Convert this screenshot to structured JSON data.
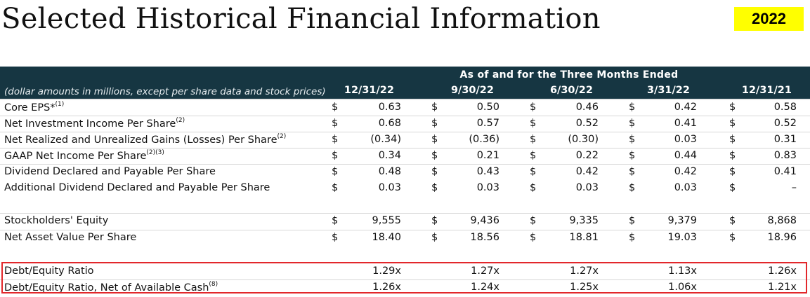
{
  "title": "Selected Historical Financial Information",
  "year_badge": "2022",
  "header": {
    "period": "As of and for the Three Months Ended",
    "note": "(dollar amounts in millions, except per share data and stock prices)",
    "columns": [
      "12/31/22",
      "9/30/22",
      "6/30/22",
      "3/31/22",
      "12/31/21"
    ]
  },
  "rows": [
    {
      "label": "Core EPS*",
      "sup": "(1)",
      "cur": "$",
      "values": [
        "0.63",
        "0.50",
        "0.46",
        "0.42",
        "0.58"
      ]
    },
    {
      "label": "Net Investment Income Per Share",
      "sup": "(2)",
      "cur": "$",
      "values": [
        "0.68",
        "0.57",
        "0.52",
        "0.41",
        "0.52"
      ]
    },
    {
      "label": "Net Realized and Unrealized Gains (Losses) Per Share",
      "sup": "(2)",
      "cur": "$",
      "values": [
        "(0.34)",
        "(0.36)",
        "(0.30)",
        "0.03",
        "0.31"
      ]
    },
    {
      "label": "GAAP Net Income Per Share",
      "sup": "(2)(3)",
      "cur": "$",
      "values": [
        "0.34",
        "0.21",
        "0.22",
        "0.44",
        "0.83"
      ]
    },
    {
      "label": "Dividend Declared and Payable Per Share",
      "sup": "",
      "cur": "$",
      "values": [
        "0.48",
        "0.43",
        "0.42",
        "0.42",
        "0.41"
      ]
    },
    {
      "label": "Additional Dividend Declared and Payable Per Share",
      "sup": "",
      "cur": "$",
      "values": [
        "0.03",
        "0.03",
        "0.03",
        "0.03",
        "–"
      ]
    },
    {
      "label": "Stockholders' Equity",
      "sup": "",
      "cur": "$",
      "values": [
        "9,555",
        "9,436",
        "9,335",
        "9,379",
        "8,868"
      ]
    },
    {
      "label": "Net Asset Value Per Share",
      "sup": "",
      "cur": "$",
      "values": [
        "18.40",
        "18.56",
        "18.81",
        "19.03",
        "18.96"
      ]
    },
    {
      "label": "Debt/Equity Ratio",
      "sup": "",
      "cur": "",
      "values": [
        "1.29x",
        "1.27x",
        "1.27x",
        "1.13x",
        "1.26x"
      ]
    },
    {
      "label": "Debt/Equity Ratio, Net of Available Cash",
      "sup": "(8)",
      "cur": "",
      "values": [
        "1.26x",
        "1.24x",
        "1.25x",
        "1.06x",
        "1.21x"
      ]
    }
  ],
  "colors": {
    "header_band": "#163642",
    "badge": "#ffff00",
    "highlight_border": "#e2272b"
  }
}
